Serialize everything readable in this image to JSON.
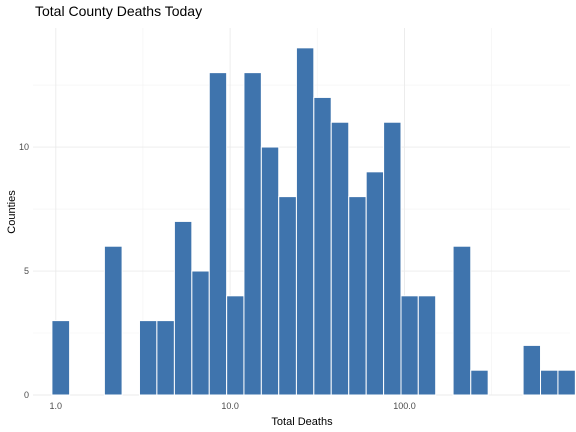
{
  "chart_data": {
    "type": "bar",
    "title": "Total County Deaths Today",
    "xlabel": "Total Deaths",
    "ylabel": "Counties",
    "x_scale": "log10",
    "xlim": [
      0.74,
      890
    ],
    "ylim": [
      0,
      14.8
    ],
    "x_ticks": [
      {
        "value": 1,
        "label": "1.0"
      },
      {
        "value": 10,
        "label": "10.0"
      },
      {
        "value": 100,
        "label": "100.0"
      }
    ],
    "x_minor_ticks": [
      0.316,
      3.16,
      31.6,
      316
    ],
    "y_ticks": [
      {
        "value": 0,
        "label": "0"
      },
      {
        "value": 5,
        "label": "5"
      },
      {
        "value": 10,
        "label": "10"
      }
    ],
    "y_minor_ticks": [
      2.5,
      7.5,
      12.5
    ],
    "bin_width_log10": 0.1,
    "bins": [
      {
        "x_start": 0.95,
        "x_end": 1.2,
        "count": 3
      },
      {
        "x_start": 1.2,
        "x_end": 1.51,
        "count": 0
      },
      {
        "x_start": 1.51,
        "x_end": 1.9,
        "count": 0
      },
      {
        "x_start": 1.9,
        "x_end": 2.4,
        "count": 6
      },
      {
        "x_start": 2.4,
        "x_end": 3.02,
        "count": 0
      },
      {
        "x_start": 3.02,
        "x_end": 3.8,
        "count": 3
      },
      {
        "x_start": 3.8,
        "x_end": 4.79,
        "count": 3
      },
      {
        "x_start": 4.79,
        "x_end": 6.03,
        "count": 7
      },
      {
        "x_start": 6.03,
        "x_end": 7.59,
        "count": 5
      },
      {
        "x_start": 7.59,
        "x_end": 9.55,
        "count": 13
      },
      {
        "x_start": 9.55,
        "x_end": 12.0,
        "count": 4
      },
      {
        "x_start": 12.0,
        "x_end": 15.1,
        "count": 13
      },
      {
        "x_start": 15.1,
        "x_end": 19.0,
        "count": 10
      },
      {
        "x_start": 19.0,
        "x_end": 24.0,
        "count": 8
      },
      {
        "x_start": 24.0,
        "x_end": 30.2,
        "count": 14
      },
      {
        "x_start": 30.2,
        "x_end": 38.0,
        "count": 12
      },
      {
        "x_start": 38.0,
        "x_end": 47.9,
        "count": 11
      },
      {
        "x_start": 47.9,
        "x_end": 60.3,
        "count": 8
      },
      {
        "x_start": 60.3,
        "x_end": 75.9,
        "count": 9
      },
      {
        "x_start": 75.9,
        "x_end": 95.5,
        "count": 11
      },
      {
        "x_start": 95.5,
        "x_end": 120,
        "count": 4
      },
      {
        "x_start": 120,
        "x_end": 151,
        "count": 4
      },
      {
        "x_start": 151,
        "x_end": 190,
        "count": 0
      },
      {
        "x_start": 190,
        "x_end": 240,
        "count": 6
      },
      {
        "x_start": 240,
        "x_end": 302,
        "count": 1
      },
      {
        "x_start": 302,
        "x_end": 380,
        "count": 0
      },
      {
        "x_start": 380,
        "x_end": 479,
        "count": 0
      },
      {
        "x_start": 479,
        "x_end": 603,
        "count": 2
      },
      {
        "x_start": 603,
        "x_end": 759,
        "count": 1
      },
      {
        "x_start": 759,
        "x_end": 955,
        "count": 1
      }
    ],
    "bar_color": "#3f74ad",
    "bar_outline_color": "#ffffff",
    "grid": true,
    "legend": "none"
  }
}
